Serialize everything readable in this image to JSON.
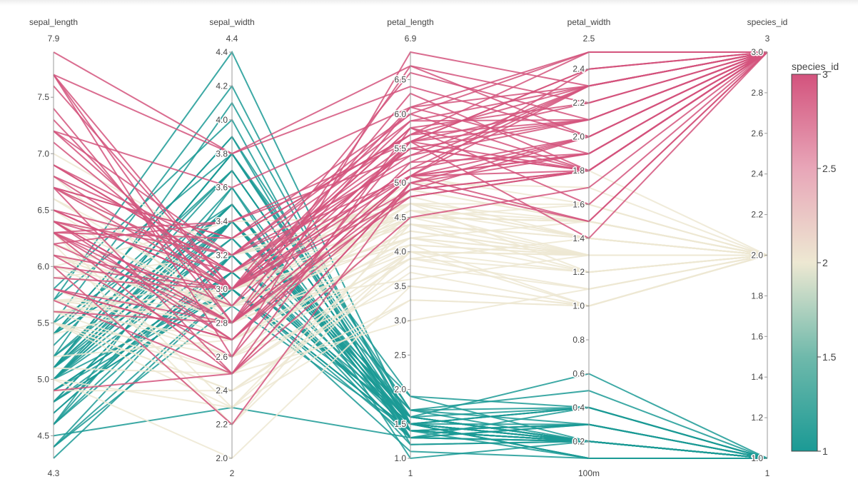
{
  "chart_data": {
    "type": "parallel_coordinates",
    "title": "",
    "color_by": "species_id",
    "colorscale": [
      [
        0.0,
        "#1b9a95"
      ],
      [
        0.25,
        "#6fb9ab"
      ],
      [
        0.5,
        "#ede8d2"
      ],
      [
        0.75,
        "#e8a6b8"
      ],
      [
        1.0,
        "#d3537d"
      ]
    ],
    "colorbar": {
      "title": "species_id",
      "ticks": [
        "1",
        "1.5",
        "2",
        "2.5",
        "3"
      ],
      "min": 1,
      "max": 3
    },
    "dimensions": [
      {
        "label": "sepal_length",
        "range": [
          4.3,
          7.9
        ],
        "range_labels": [
          "7.9",
          "4.3"
        ],
        "ticks": [
          4.5,
          5.0,
          5.5,
          6.0,
          6.5,
          7.0,
          7.5
        ],
        "tick_labels": [
          "4.5",
          "5.0",
          "5.5",
          "6.0",
          "6.5",
          "7.0",
          "7.5"
        ]
      },
      {
        "label": "sepal_width",
        "range": [
          2,
          4.4
        ],
        "range_labels": [
          "4.4",
          "2"
        ],
        "ticks": [
          2.0,
          2.2,
          2.4,
          2.6,
          2.8,
          3.0,
          3.2,
          3.4,
          3.6,
          3.8,
          4.0,
          4.2,
          4.4
        ],
        "tick_labels": [
          "2.0",
          "2.2",
          "2.4",
          "2.6",
          "2.8",
          "3.0",
          "3.2",
          "3.4",
          "3.6",
          "3.8",
          "4.0",
          "4.2",
          "4.4"
        ]
      },
      {
        "label": "petal_length",
        "range": [
          1,
          6.9
        ],
        "range_labels": [
          "6.9",
          "1"
        ],
        "ticks": [
          1.0,
          1.5,
          2.0,
          2.5,
          3.0,
          3.5,
          4.0,
          4.5,
          5.0,
          5.5,
          6.0,
          6.5
        ],
        "tick_labels": [
          "1.0",
          "1.5",
          "2.0",
          "2.5",
          "3.0",
          "3.5",
          "4.0",
          "4.5",
          "5.0",
          "5.5",
          "6.0",
          "6.5"
        ]
      },
      {
        "label": "petal_width",
        "range": [
          0.1,
          2.5
        ],
        "range_labels": [
          "2.5",
          "100m"
        ],
        "ticks": [
          0.2,
          0.4,
          0.6,
          0.8,
          1.0,
          1.2,
          1.4,
          1.6,
          1.8,
          2.0,
          2.2,
          2.4
        ],
        "tick_labels": [
          "0.2",
          "0.4",
          "0.6",
          "0.8",
          "1.0",
          "1.2",
          "1.4",
          "1.6",
          "1.8",
          "2.0",
          "2.2",
          "2.4"
        ]
      },
      {
        "label": "species_id",
        "range": [
          1,
          3
        ],
        "range_labels": [
          "3",
          "1"
        ],
        "ticks": [
          1.0,
          1.2,
          1.4,
          1.6,
          1.8,
          2.0,
          2.2,
          2.4,
          2.6,
          2.8,
          3.0
        ],
        "tick_labels": [
          "1.0",
          "1.2",
          "1.4",
          "1.6",
          "1.8",
          "2.0",
          "2.2",
          "2.4",
          "2.6",
          "2.8",
          "3.0"
        ]
      }
    ],
    "rows": [
      [
        5.1,
        3.5,
        1.4,
        0.2,
        1
      ],
      [
        4.9,
        3.0,
        1.4,
        0.2,
        1
      ],
      [
        4.7,
        3.2,
        1.3,
        0.2,
        1
      ],
      [
        4.6,
        3.1,
        1.5,
        0.2,
        1
      ],
      [
        5.0,
        3.6,
        1.4,
        0.2,
        1
      ],
      [
        5.4,
        3.9,
        1.7,
        0.4,
        1
      ],
      [
        4.6,
        3.4,
        1.4,
        0.3,
        1
      ],
      [
        5.0,
        3.4,
        1.5,
        0.2,
        1
      ],
      [
        4.4,
        2.9,
        1.4,
        0.2,
        1
      ],
      [
        4.9,
        3.1,
        1.5,
        0.1,
        1
      ],
      [
        5.4,
        3.7,
        1.5,
        0.2,
        1
      ],
      [
        4.8,
        3.4,
        1.6,
        0.2,
        1
      ],
      [
        4.8,
        3.0,
        1.4,
        0.1,
        1
      ],
      [
        4.3,
        3.0,
        1.1,
        0.1,
        1
      ],
      [
        5.8,
        4.0,
        1.2,
        0.2,
        1
      ],
      [
        5.7,
        4.4,
        1.5,
        0.4,
        1
      ],
      [
        5.4,
        3.9,
        1.3,
        0.4,
        1
      ],
      [
        5.1,
        3.5,
        1.4,
        0.3,
        1
      ],
      [
        5.7,
        3.8,
        1.7,
        0.3,
        1
      ],
      [
        5.1,
        3.8,
        1.5,
        0.3,
        1
      ],
      [
        5.4,
        3.4,
        1.7,
        0.2,
        1
      ],
      [
        5.1,
        3.7,
        1.5,
        0.4,
        1
      ],
      [
        4.6,
        3.6,
        1.0,
        0.2,
        1
      ],
      [
        5.1,
        3.3,
        1.7,
        0.5,
        1
      ],
      [
        4.8,
        3.4,
        1.9,
        0.2,
        1
      ],
      [
        5.0,
        3.0,
        1.6,
        0.2,
        1
      ],
      [
        5.0,
        3.4,
        1.6,
        0.4,
        1
      ],
      [
        5.2,
        3.5,
        1.5,
        0.2,
        1
      ],
      [
        5.2,
        3.4,
        1.4,
        0.2,
        1
      ],
      [
        4.7,
        3.2,
        1.6,
        0.2,
        1
      ],
      [
        4.8,
        3.1,
        1.6,
        0.2,
        1
      ],
      [
        5.4,
        3.4,
        1.5,
        0.4,
        1
      ],
      [
        5.2,
        4.1,
        1.5,
        0.1,
        1
      ],
      [
        5.5,
        4.2,
        1.4,
        0.2,
        1
      ],
      [
        4.9,
        3.1,
        1.5,
        0.1,
        1
      ],
      [
        5.0,
        3.2,
        1.2,
        0.2,
        1
      ],
      [
        5.5,
        3.5,
        1.3,
        0.2,
        1
      ],
      [
        4.9,
        3.1,
        1.5,
        0.1,
        1
      ],
      [
        4.4,
        3.0,
        1.3,
        0.2,
        1
      ],
      [
        5.1,
        3.4,
        1.5,
        0.2,
        1
      ],
      [
        5.0,
        3.5,
        1.3,
        0.3,
        1
      ],
      [
        4.5,
        2.3,
        1.3,
        0.3,
        1
      ],
      [
        4.4,
        3.2,
        1.3,
        0.2,
        1
      ],
      [
        5.0,
        3.5,
        1.6,
        0.6,
        1
      ],
      [
        5.1,
        3.8,
        1.9,
        0.4,
        1
      ],
      [
        4.8,
        3.0,
        1.4,
        0.3,
        1
      ],
      [
        5.1,
        3.8,
        1.6,
        0.2,
        1
      ],
      [
        4.6,
        3.2,
        1.4,
        0.2,
        1
      ],
      [
        5.3,
        3.7,
        1.5,
        0.2,
        1
      ],
      [
        5.0,
        3.3,
        1.4,
        0.2,
        1
      ],
      [
        7.0,
        3.2,
        4.7,
        1.4,
        2
      ],
      [
        6.4,
        3.2,
        4.5,
        1.5,
        2
      ],
      [
        6.9,
        3.1,
        4.9,
        1.5,
        2
      ],
      [
        5.5,
        2.3,
        4.0,
        1.3,
        2
      ],
      [
        6.5,
        2.8,
        4.6,
        1.5,
        2
      ],
      [
        5.7,
        2.8,
        4.5,
        1.3,
        2
      ],
      [
        6.3,
        3.3,
        4.7,
        1.6,
        2
      ],
      [
        4.9,
        2.4,
        3.3,
        1.0,
        2
      ],
      [
        6.6,
        2.9,
        4.6,
        1.3,
        2
      ],
      [
        5.2,
        2.7,
        3.9,
        1.4,
        2
      ],
      [
        5.0,
        2.0,
        3.5,
        1.0,
        2
      ],
      [
        5.9,
        3.0,
        4.2,
        1.5,
        2
      ],
      [
        6.0,
        2.2,
        4.0,
        1.0,
        2
      ],
      [
        6.1,
        2.9,
        4.7,
        1.4,
        2
      ],
      [
        5.6,
        2.9,
        3.6,
        1.3,
        2
      ],
      [
        6.7,
        3.1,
        4.4,
        1.4,
        2
      ],
      [
        5.6,
        3.0,
        4.5,
        1.5,
        2
      ],
      [
        5.8,
        2.7,
        4.1,
        1.0,
        2
      ],
      [
        6.2,
        2.2,
        4.5,
        1.5,
        2
      ],
      [
        5.6,
        2.5,
        3.9,
        1.1,
        2
      ],
      [
        5.9,
        3.2,
        4.8,
        1.8,
        2
      ],
      [
        6.1,
        2.8,
        4.0,
        1.3,
        2
      ],
      [
        6.3,
        2.5,
        4.9,
        1.5,
        2
      ],
      [
        6.1,
        2.8,
        4.7,
        1.2,
        2
      ],
      [
        6.4,
        2.9,
        4.3,
        1.3,
        2
      ],
      [
        6.6,
        3.0,
        4.4,
        1.4,
        2
      ],
      [
        6.8,
        2.8,
        4.8,
        1.4,
        2
      ],
      [
        6.7,
        3.0,
        5.0,
        1.7,
        2
      ],
      [
        6.0,
        2.9,
        4.5,
        1.5,
        2
      ],
      [
        5.7,
        2.6,
        3.5,
        1.0,
        2
      ],
      [
        5.5,
        2.4,
        3.8,
        1.1,
        2
      ],
      [
        5.5,
        2.4,
        3.7,
        1.0,
        2
      ],
      [
        5.8,
        2.7,
        3.9,
        1.2,
        2
      ],
      [
        6.0,
        2.7,
        5.1,
        1.6,
        2
      ],
      [
        5.4,
        3.0,
        4.5,
        1.5,
        2
      ],
      [
        6.0,
        3.4,
        4.5,
        1.6,
        2
      ],
      [
        6.7,
        3.1,
        4.7,
        1.5,
        2
      ],
      [
        6.3,
        2.3,
        4.4,
        1.3,
        2
      ],
      [
        5.6,
        3.0,
        4.1,
        1.3,
        2
      ],
      [
        5.5,
        2.5,
        4.0,
        1.3,
        2
      ],
      [
        5.5,
        2.6,
        4.4,
        1.2,
        2
      ],
      [
        6.1,
        3.0,
        4.6,
        1.4,
        2
      ],
      [
        5.8,
        2.6,
        4.0,
        1.2,
        2
      ],
      [
        5.0,
        2.3,
        3.3,
        1.0,
        2
      ],
      [
        5.6,
        2.7,
        4.2,
        1.3,
        2
      ],
      [
        5.7,
        3.0,
        4.2,
        1.2,
        2
      ],
      [
        5.7,
        2.9,
        4.2,
        1.3,
        2
      ],
      [
        6.2,
        2.9,
        4.3,
        1.3,
        2
      ],
      [
        5.1,
        2.5,
        3.0,
        1.1,
        2
      ],
      [
        5.7,
        2.8,
        4.1,
        1.3,
        2
      ],
      [
        6.3,
        3.3,
        6.0,
        2.5,
        3
      ],
      [
        5.8,
        2.7,
        5.1,
        1.9,
        3
      ],
      [
        7.1,
        3.0,
        5.9,
        2.1,
        3
      ],
      [
        6.3,
        2.9,
        5.6,
        1.8,
        3
      ],
      [
        6.5,
        3.0,
        5.8,
        2.2,
        3
      ],
      [
        7.6,
        3.0,
        6.6,
        2.1,
        3
      ],
      [
        4.9,
        2.5,
        4.5,
        1.7,
        3
      ],
      [
        7.3,
        2.9,
        6.3,
        1.8,
        3
      ],
      [
        6.7,
        2.5,
        5.8,
        1.8,
        3
      ],
      [
        7.2,
        3.6,
        6.1,
        2.5,
        3
      ],
      [
        6.5,
        3.2,
        5.1,
        2.0,
        3
      ],
      [
        6.4,
        2.7,
        5.3,
        1.9,
        3
      ],
      [
        6.8,
        3.0,
        5.5,
        2.1,
        3
      ],
      [
        5.7,
        2.5,
        5.0,
        2.0,
        3
      ],
      [
        5.8,
        2.8,
        5.1,
        2.4,
        3
      ],
      [
        6.4,
        3.2,
        5.3,
        2.3,
        3
      ],
      [
        6.5,
        3.0,
        5.5,
        1.8,
        3
      ],
      [
        7.7,
        3.8,
        6.7,
        2.2,
        3
      ],
      [
        7.7,
        2.6,
        6.9,
        2.3,
        3
      ],
      [
        6.0,
        2.2,
        5.0,
        1.5,
        3
      ],
      [
        6.9,
        3.2,
        5.7,
        2.3,
        3
      ],
      [
        5.6,
        2.8,
        4.9,
        2.0,
        3
      ],
      [
        7.7,
        2.8,
        6.7,
        2.0,
        3
      ],
      [
        6.3,
        2.7,
        4.9,
        1.8,
        3
      ],
      [
        6.7,
        3.3,
        5.7,
        2.1,
        3
      ],
      [
        7.2,
        3.2,
        6.0,
        1.8,
        3
      ],
      [
        6.2,
        2.8,
        4.8,
        1.8,
        3
      ],
      [
        6.1,
        3.0,
        4.9,
        1.8,
        3
      ],
      [
        6.4,
        2.8,
        5.6,
        2.1,
        3
      ],
      [
        7.2,
        3.0,
        5.8,
        1.6,
        3
      ],
      [
        7.4,
        2.8,
        6.1,
        1.9,
        3
      ],
      [
        7.9,
        3.8,
        6.4,
        2.0,
        3
      ],
      [
        6.4,
        2.8,
        5.6,
        2.2,
        3
      ],
      [
        6.3,
        2.8,
        5.1,
        1.5,
        3
      ],
      [
        6.1,
        2.6,
        5.6,
        1.4,
        3
      ],
      [
        7.7,
        3.0,
        6.1,
        2.3,
        3
      ],
      [
        6.3,
        3.4,
        5.6,
        2.4,
        3
      ],
      [
        6.4,
        3.1,
        5.5,
        1.8,
        3
      ],
      [
        6.0,
        3.0,
        4.8,
        1.8,
        3
      ],
      [
        6.9,
        3.1,
        5.4,
        2.1,
        3
      ],
      [
        6.7,
        3.1,
        5.6,
        2.4,
        3
      ],
      [
        6.9,
        3.1,
        5.1,
        2.3,
        3
      ],
      [
        5.8,
        2.7,
        5.1,
        1.9,
        3
      ],
      [
        6.8,
        3.2,
        5.9,
        2.3,
        3
      ],
      [
        6.7,
        3.3,
        5.7,
        2.5,
        3
      ],
      [
        6.7,
        3.0,
        5.2,
        2.3,
        3
      ],
      [
        6.3,
        2.5,
        5.0,
        1.9,
        3
      ],
      [
        6.5,
        3.0,
        5.2,
        2.0,
        3
      ],
      [
        6.2,
        3.4,
        5.4,
        2.3,
        3
      ],
      [
        5.9,
        3.0,
        5.1,
        1.8,
        3
      ]
    ]
  }
}
